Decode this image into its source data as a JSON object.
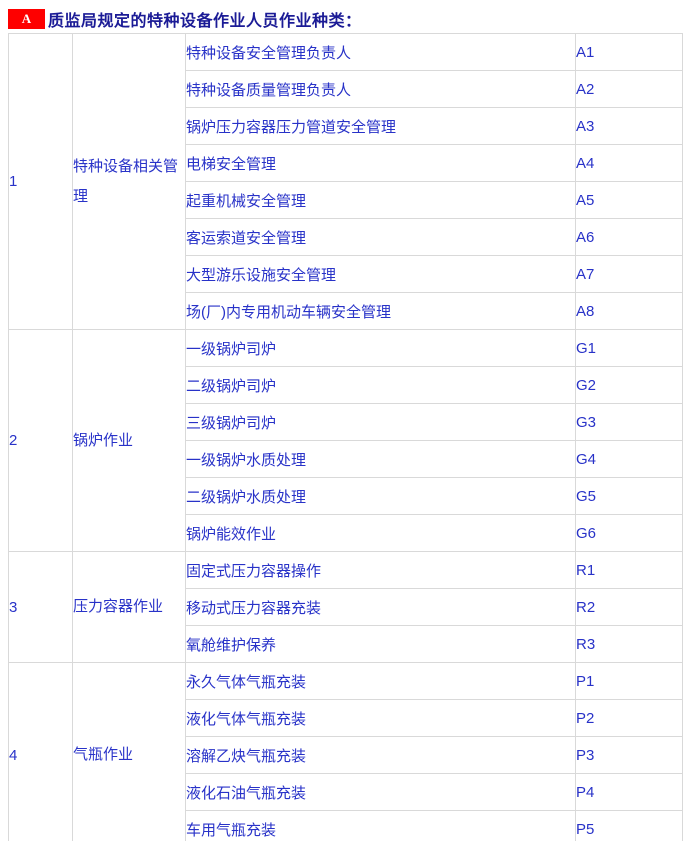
{
  "header": {
    "badge": "A",
    "title": "质监局规定的特种设备作业人员作业种类："
  },
  "colors": {
    "badge_bg": "#fe0000",
    "badge_text": "#ffffff",
    "title": "#1b1b96",
    "cell_text": "#2832c8",
    "grid_border": "#d9d9d9"
  },
  "table": {
    "sections": [
      {
        "no": "1",
        "category": "特种设备相关管理",
        "items": [
          {
            "name": "特种设备安全管理负责人",
            "code": "A1"
          },
          {
            "name": "特种设备质量管理负责人",
            "code": "A2"
          },
          {
            "name": "锅炉压力容器压力管道安全管理",
            "code": "A3"
          },
          {
            "name": "电梯安全管理",
            "code": "A4"
          },
          {
            "name": "起重机械安全管理",
            "code": "A5"
          },
          {
            "name": "客运索道安全管理",
            "code": "A6"
          },
          {
            "name": "大型游乐设施安全管理",
            "code": "A7"
          },
          {
            "name": "场(厂)内专用机动车辆安全管理",
            "code": "A8"
          }
        ]
      },
      {
        "no": "2",
        "category": "锅炉作业",
        "items": [
          {
            "name": "一级锅炉司炉",
            "code": "G1"
          },
          {
            "name": "二级锅炉司炉",
            "code": "G2"
          },
          {
            "name": "三级锅炉司炉",
            "code": "G3"
          },
          {
            "name": "一级锅炉水质处理",
            "code": "G4"
          },
          {
            "name": "二级锅炉水质处理",
            "code": "G5"
          },
          {
            "name": "锅炉能效作业",
            "code": "G6"
          }
        ]
      },
      {
        "no": "3",
        "category": "压力容器作业",
        "items": [
          {
            "name": "固定式压力容器操作",
            "code": "R1"
          },
          {
            "name": "移动式压力容器充装",
            "code": "R2"
          },
          {
            "name": "氧舱维护保养",
            "code": "R3"
          }
        ]
      },
      {
        "no": "4",
        "category": "气瓶作业",
        "items": [
          {
            "name": "永久气体气瓶充装",
            "code": "P1"
          },
          {
            "name": "液化气体气瓶充装",
            "code": "P2"
          },
          {
            "name": "溶解乙炔气瓶充装",
            "code": "P3"
          },
          {
            "name": "液化石油气瓶充装",
            "code": "P4"
          },
          {
            "name": "车用气瓶充装",
            "code": "P5"
          }
        ]
      }
    ]
  }
}
